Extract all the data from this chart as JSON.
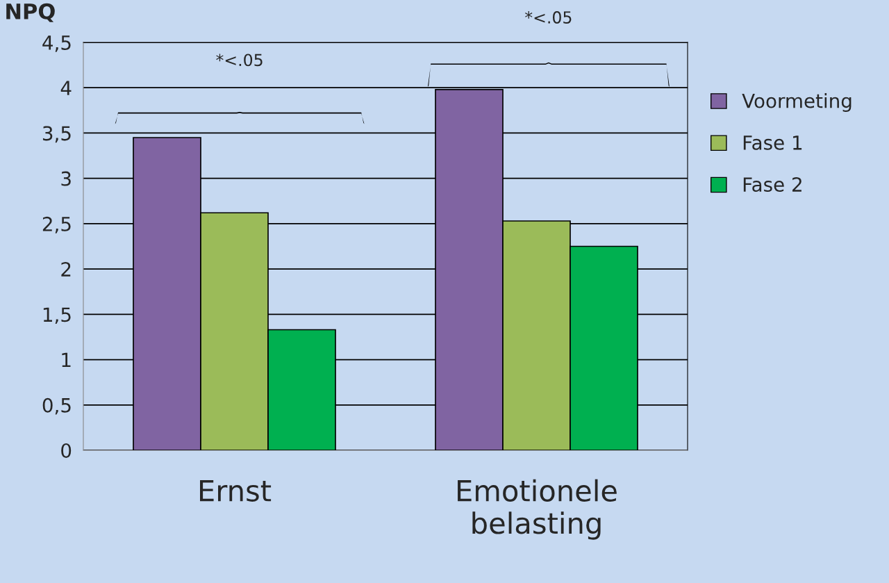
{
  "chart_data": {
    "type": "bar",
    "title": "NPQ",
    "categories": [
      "Ernst",
      "Emotionele belasting"
    ],
    "series": [
      {
        "name": "Voormeting",
        "color": "#8064a2",
        "values": [
          3.45,
          3.98
        ]
      },
      {
        "name": "Fase 1",
        "color": "#9bbb59",
        "values": [
          2.62,
          2.53
        ]
      },
      {
        "name": "Fase 2",
        "color": "#00b050",
        "values": [
          1.33,
          2.25
        ]
      }
    ],
    "ylim": [
      0,
      4.5
    ],
    "yticks": [
      0,
      {
        "value": 0.5,
        "label": "0,5"
      },
      1,
      {
        "value": 1.5,
        "label": "1,5"
      },
      2,
      {
        "value": 2.5,
        "label": "2,5"
      },
      3,
      {
        "value": 3.5,
        "label": "3,5"
      },
      4,
      {
        "value": 4.5,
        "label": "4,5"
      }
    ],
    "grid": "y",
    "legend": "right",
    "annotations": [
      "*<.05",
      "*<.05"
    ]
  }
}
